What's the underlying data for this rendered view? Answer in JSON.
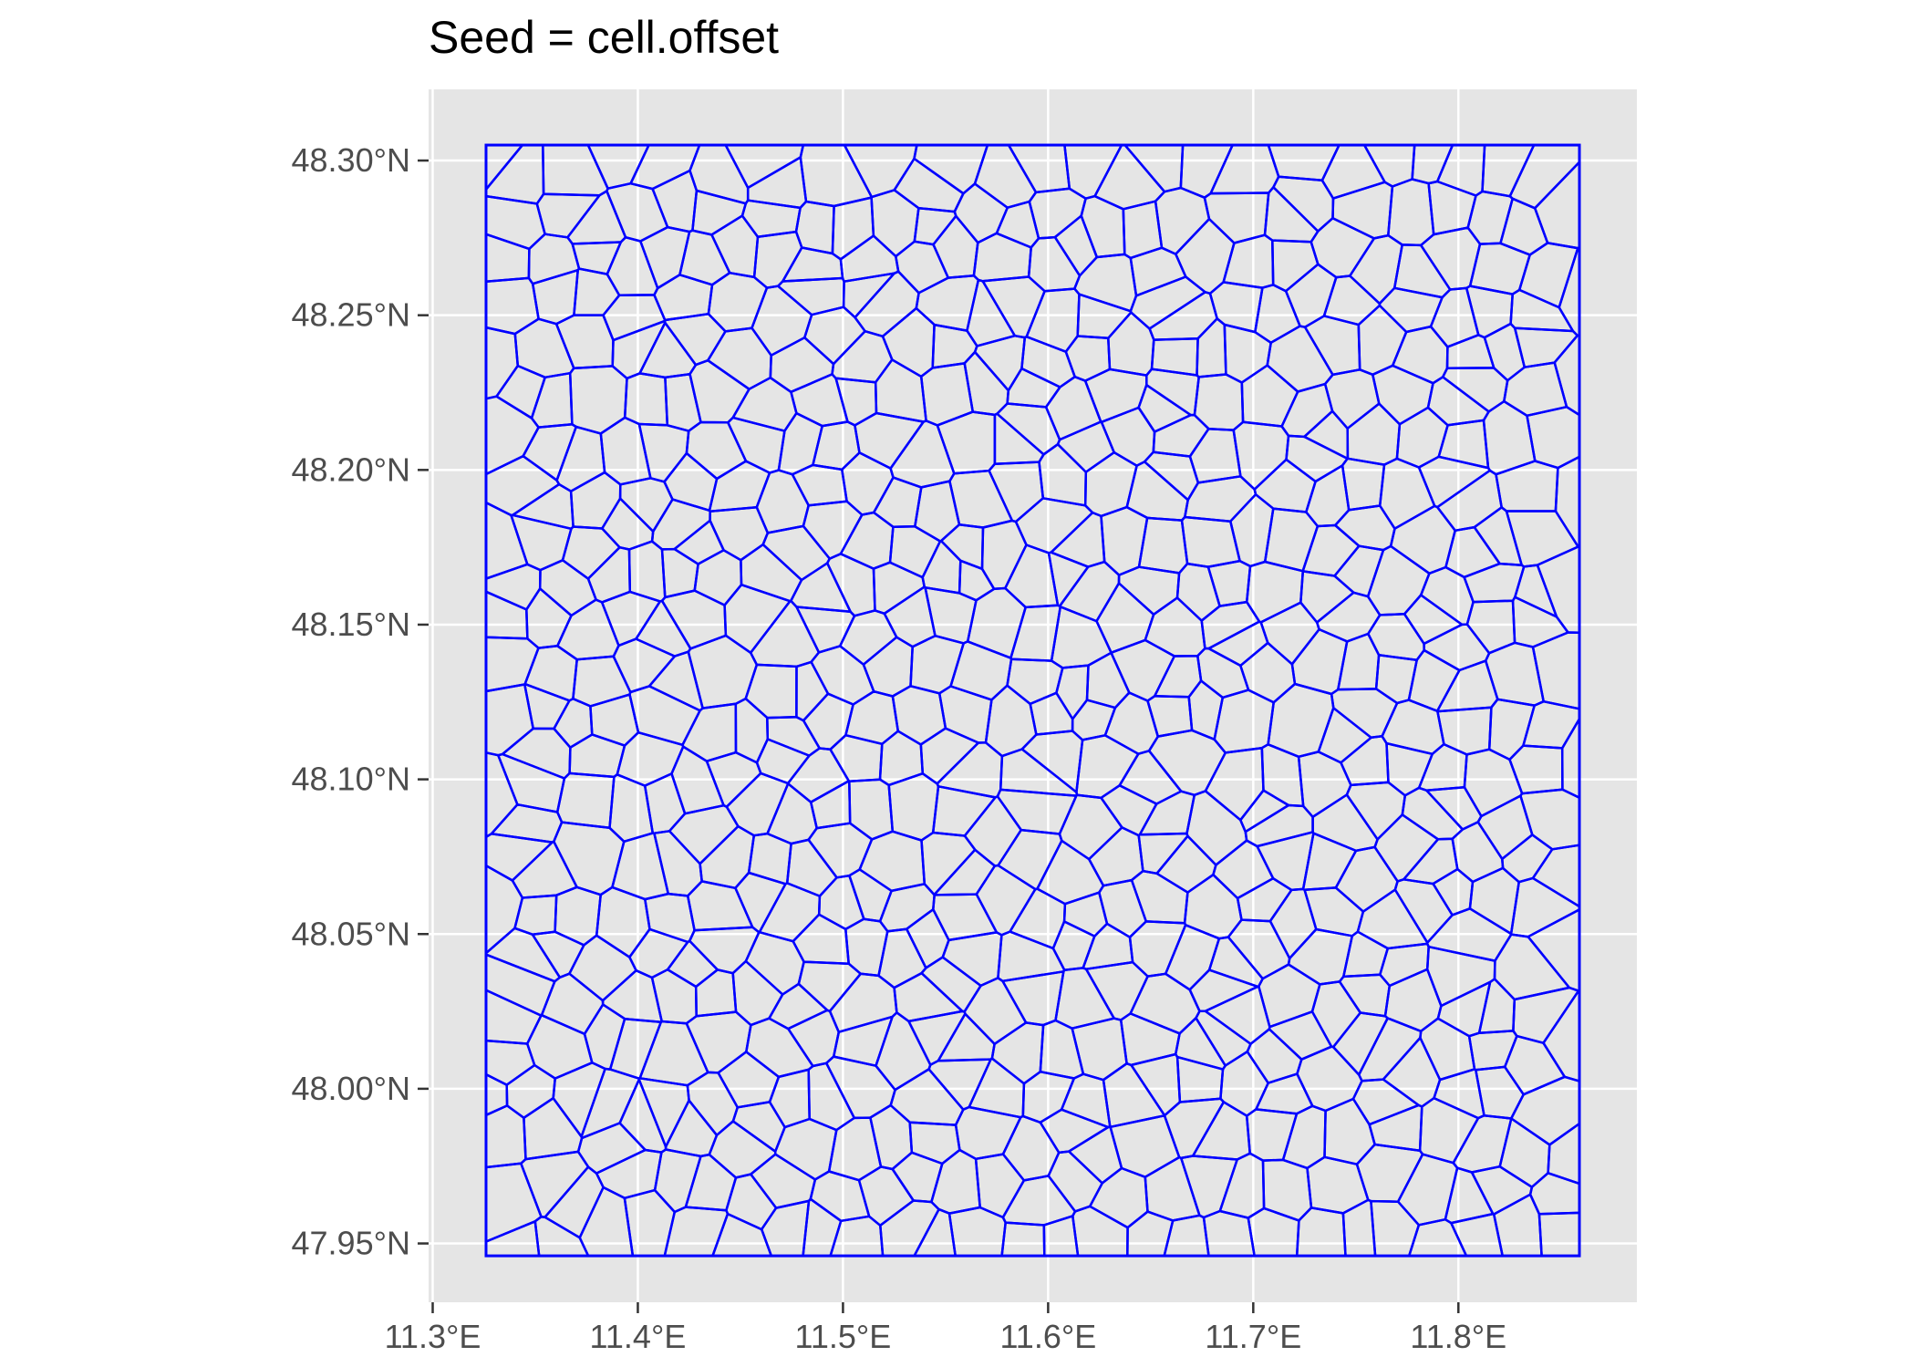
{
  "chart_data": {
    "type": "map",
    "title": "Seed = cell.offset",
    "xlabel": "",
    "ylabel": "",
    "x_ticks": [
      {
        "value": 11.3,
        "label": "11.3°E"
      },
      {
        "value": 11.4,
        "label": "11.4°E"
      },
      {
        "value": 11.5,
        "label": "11.5°E"
      },
      {
        "value": 11.6,
        "label": "11.6°E"
      },
      {
        "value": 11.7,
        "label": "11.7°E"
      },
      {
        "value": 11.8,
        "label": "11.8°E"
      }
    ],
    "y_ticks": [
      {
        "value": 47.95,
        "label": "47.95°N"
      },
      {
        "value": 48.0,
        "label": "48.00°N"
      },
      {
        "value": 48.05,
        "label": "48.05°N"
      },
      {
        "value": 48.1,
        "label": "48.10°N"
      },
      {
        "value": 48.15,
        "label": "48.15°N"
      },
      {
        "value": 48.2,
        "label": "48.20°N"
      },
      {
        "value": 48.25,
        "label": "48.25°N"
      },
      {
        "value": 48.3,
        "label": "48.30°N"
      }
    ],
    "xlim": [
      11.298,
      11.887
    ],
    "ylim": [
      47.931,
      48.323
    ],
    "bbox_lon": [
      11.326,
      11.859
    ],
    "bbox_lat": [
      47.946,
      48.305
    ],
    "grid": true,
    "panel_background": "#e5e5e5",
    "grid_color": "#ffffff",
    "tessellation": {
      "description_free": true,
      "seed": 31,
      "cols": 26,
      "rows": 24,
      "stroke_color": "#0000ff"
    }
  }
}
